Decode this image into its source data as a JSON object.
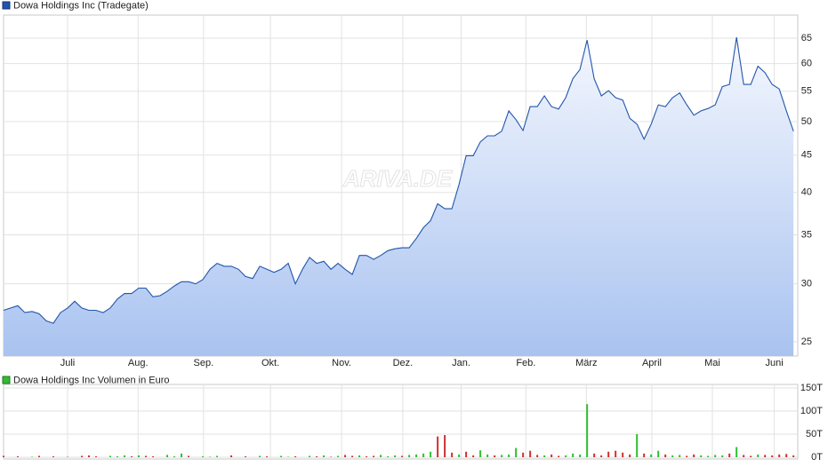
{
  "chart_data": [
    {
      "type": "line",
      "log_y": true,
      "grid": true,
      "watermark": "ARIVA.DE",
      "x": [
        0,
        1,
        2,
        3,
        4,
        5,
        6,
        7,
        8,
        9,
        10,
        11,
        12,
        13,
        14,
        15,
        16,
        17,
        18,
        19,
        20,
        21,
        22,
        23,
        24,
        25,
        26,
        27,
        28,
        29,
        30,
        31,
        32,
        33,
        34,
        35,
        36,
        37,
        38,
        39,
        40,
        41,
        42,
        43,
        44,
        45,
        46,
        47,
        48,
        49,
        50,
        51,
        52,
        53,
        54,
        55,
        56,
        57,
        58,
        59,
        60,
        61,
        62,
        63,
        64,
        65,
        66,
        67,
        68,
        69,
        70,
        71,
        72,
        73,
        74,
        75,
        76,
        77,
        78,
        79,
        80,
        81,
        82,
        83,
        84,
        85,
        86,
        87,
        88,
        89,
        90,
        91,
        92,
        93,
        94,
        95,
        96,
        97,
        98,
        99,
        100,
        101,
        102,
        103,
        104,
        105,
        106,
        107,
        108,
        109,
        110,
        111
      ],
      "series": [
        {
          "name": "Dowa Holdings Inc (Tradegate)",
          "color": "#2255aa",
          "values": [
            27.6,
            27.8,
            28.0,
            27.4,
            27.5,
            27.3,
            26.7,
            26.5,
            27.4,
            27.8,
            28.4,
            27.8,
            27.6,
            27.6,
            27.4,
            27.8,
            28.6,
            29.1,
            29.1,
            29.6,
            29.6,
            28.8,
            28.9,
            29.3,
            29.8,
            30.2,
            30.2,
            30.0,
            30.4,
            31.4,
            32.0,
            31.7,
            31.7,
            31.4,
            30.7,
            30.5,
            31.7,
            31.4,
            31.1,
            31.4,
            32.0,
            30.0,
            31.4,
            32.6,
            32.0,
            32.2,
            31.4,
            32.0,
            31.4,
            30.9,
            32.8,
            32.8,
            32.4,
            32.8,
            33.3,
            33.5,
            33.6,
            33.6,
            34.6,
            35.8,
            36.6,
            38.6,
            38.0,
            38.0,
            41.0,
            44.9,
            44.9,
            46.9,
            47.8,
            47.8,
            48.5,
            51.7,
            50.3,
            48.6,
            52.4,
            52.4,
            54.2,
            52.4,
            52.0,
            53.9,
            57.2,
            58.9,
            64.6,
            57.2,
            54.2,
            55.1,
            53.9,
            53.5,
            50.5,
            49.6,
            47.3,
            49.6,
            52.7,
            52.4,
            53.9,
            54.7,
            52.7,
            51.0,
            51.7,
            52.1,
            52.7,
            55.8,
            56.2,
            65.2,
            56.2,
            56.2,
            59.5,
            58.3,
            56.2,
            55.4,
            51.7,
            48.5
          ]
        }
      ],
      "xlim": [
        0,
        111.6
      ],
      "xticks": [
        {
          "value": 9,
          "label": "Juli"
        },
        {
          "value": 18.9,
          "label": "Aug."
        },
        {
          "value": 28.1,
          "label": "Sep."
        },
        {
          "value": 37.5,
          "label": "Okt."
        },
        {
          "value": 47.5,
          "label": "Nov."
        },
        {
          "value": 56.1,
          "label": "Dez."
        },
        {
          "value": 64.3,
          "label": "Jan."
        },
        {
          "value": 73.4,
          "label": "Feb."
        },
        {
          "value": 81.9,
          "label": "März"
        },
        {
          "value": 91.1,
          "label": "April"
        },
        {
          "value": 99.6,
          "label": "Mai"
        },
        {
          "value": 108.3,
          "label": "Juni"
        }
      ],
      "ylim": [
        23.9,
        69.9
      ],
      "yticks": [
        25,
        30,
        35,
        40,
        45,
        50,
        55,
        60,
        65
      ]
    },
    {
      "type": "bar",
      "grid": true,
      "x": [
        0,
        1,
        2,
        3,
        4,
        5,
        6,
        7,
        8,
        9,
        10,
        11,
        12,
        13,
        14,
        15,
        16,
        17,
        18,
        19,
        20,
        21,
        22,
        23,
        24,
        25,
        26,
        27,
        28,
        29,
        30,
        31,
        32,
        33,
        34,
        35,
        36,
        37,
        38,
        39,
        40,
        41,
        42,
        43,
        44,
        45,
        46,
        47,
        48,
        49,
        50,
        51,
        52,
        53,
        54,
        55,
        56,
        57,
        58,
        59,
        60,
        61,
        62,
        63,
        64,
        65,
        66,
        67,
        68,
        69,
        70,
        71,
        72,
        73,
        74,
        75,
        76,
        77,
        78,
        79,
        80,
        81,
        82,
        83,
        84,
        85,
        86,
        87,
        88,
        89,
        90,
        91,
        92,
        93,
        94,
        95,
        96,
        97,
        98,
        99,
        100,
        101,
        102,
        103,
        104,
        105,
        106,
        107,
        108,
        109,
        110,
        111
      ],
      "series": [
        {
          "name": "Dowa Holdings Inc Volumen in Euro",
          "color": "#33bb33",
          "values": [
            3000,
            0,
            2000,
            0,
            1000,
            3000,
            0,
            2000,
            0,
            1000,
            0,
            3000,
            4000,
            2000,
            0,
            3000,
            2000,
            4000,
            2000,
            4000,
            3000,
            2000,
            0,
            5000,
            2000,
            8000,
            3000,
            0,
            2000,
            1000,
            3000,
            0,
            4000,
            0,
            2000,
            0,
            3000,
            2000,
            0,
            3000,
            1000,
            2000,
            0,
            3000,
            2000,
            4000,
            1000,
            3000,
            5000,
            3000,
            4000,
            2000,
            3000,
            5000,
            2000,
            4000,
            3000,
            5000,
            6000,
            8000,
            12000,
            45000,
            48000,
            10000,
            6000,
            12000,
            4000,
            15000,
            6000,
            4000,
            5000,
            6000,
            20000,
            10000,
            14000,
            5000,
            4000,
            6000,
            3000,
            4000,
            8000,
            6000,
            115000,
            8000,
            4000,
            12000,
            14000,
            10000,
            6000,
            50000,
            8000,
            6000,
            14000,
            6000,
            4000,
            5000,
            3000,
            6000,
            4000,
            3000,
            5000,
            4000,
            8000,
            22000,
            5000,
            3000,
            6000,
            5000,
            4000,
            6000,
            7000,
            4000
          ],
          "bar_colors": [
            "#d03030",
            "#d03030",
            "#d03030",
            "#d03030",
            "#30c030",
            "#d03030",
            "#d03030",
            "#d03030",
            "#30c030",
            "#30c030",
            "#30c030",
            "#d03030",
            "#d03030",
            "#d03030",
            "#d03030",
            "#30c030",
            "#30c030",
            "#30c030",
            "#d03030",
            "#30c030",
            "#d03030",
            "#d03030",
            "#30c030",
            "#30c030",
            "#30c030",
            "#30c030",
            "#d03030",
            "#d03030",
            "#30c030",
            "#30c030",
            "#30c030",
            "#d03030",
            "#d03030",
            "#d03030",
            "#d03030",
            "#d03030",
            "#30c030",
            "#d03030",
            "#d03030",
            "#30c030",
            "#30c030",
            "#d03030",
            "#30c030",
            "#30c030",
            "#d03030",
            "#30c030",
            "#d03030",
            "#30c030",
            "#d03030",
            "#d03030",
            "#30c030",
            "#d03030",
            "#d03030",
            "#30c030",
            "#30c030",
            "#30c030",
            "#d03030",
            "#30c030",
            "#30c030",
            "#30c030",
            "#30c030",
            "#d03030",
            "#d03030",
            "#d03030",
            "#30c030",
            "#d03030",
            "#d03030",
            "#30c030",
            "#30c030",
            "#d03030",
            "#30c030",
            "#30c030",
            "#30c030",
            "#d03030",
            "#d03030",
            "#d03030",
            "#30c030",
            "#d03030",
            "#d03030",
            "#30c030",
            "#30c030",
            "#30c030",
            "#30c030",
            "#d03030",
            "#d03030",
            "#d03030",
            "#d03030",
            "#d03030",
            "#d03030",
            "#30c030",
            "#d03030",
            "#30c030",
            "#30c030",
            "#d03030",
            "#30c030",
            "#30c030",
            "#d03030",
            "#d03030",
            "#30c030",
            "#30c030",
            "#30c030",
            "#30c030",
            "#d03030",
            "#30c030",
            "#d03030",
            "#d03030",
            "#30c030",
            "#d03030",
            "#d03030",
            "#d03030",
            "#d03030",
            "#d03030"
          ]
        }
      ],
      "xlim": [
        0,
        111.6
      ],
      "ylim": [
        0,
        150000
      ],
      "yticks": [
        {
          "value": 0,
          "label": "0T"
        },
        {
          "value": 50000,
          "label": "50T"
        },
        {
          "value": 100000,
          "label": "100T"
        },
        {
          "value": 150000,
          "label": "150T"
        }
      ]
    }
  ]
}
